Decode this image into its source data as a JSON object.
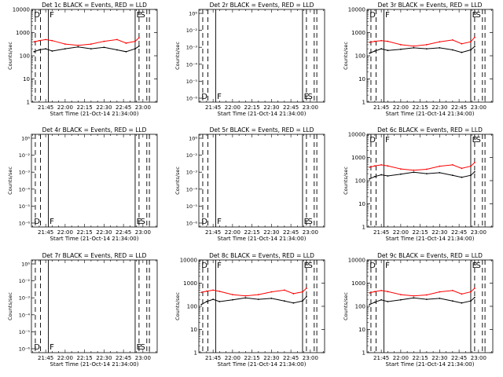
{
  "figure": {
    "x_tick_labels": [
      "21:45",
      "22:00",
      "22:15",
      "22:30",
      "22:45",
      "23:00"
    ],
    "x_axis_label": "Start Time (21-Oct-14 21:34:00)",
    "y_axis_label": "Counts/sec",
    "log_tick_labels": [
      "1",
      "10",
      "100",
      "1000",
      "10000"
    ],
    "empty_tick_labels": [
      "10⁶",
      "10⁻²",
      "10⁻³",
      "10⁻⁴",
      "10⁻⁵",
      "10⁻⁶"
    ],
    "colors": {
      "events": "#000000",
      "lld": "#ff0000"
    }
  },
  "chart_data": [
    {
      "type": "line",
      "title": "Det 1c BLACK = Events, RED = LLD",
      "has_data": true,
      "markers": [
        "D",
        "F",
        "E",
        "S"
      ],
      "ylim": [
        1,
        10000
      ],
      "y_scale": "log",
      "series": [
        {
          "name": "Events",
          "x": [
            "21:36",
            "21:40",
            "21:45",
            "21:50",
            "22:00",
            "22:10",
            "22:20",
            "22:30",
            "22:40",
            "22:47",
            "22:54",
            "22:57"
          ],
          "values": [
            150,
            180,
            200,
            160,
            200,
            240,
            200,
            230,
            180,
            150,
            200,
            260
          ]
        },
        {
          "name": "LLD",
          "x": [
            "21:36",
            "21:40",
            "21:45",
            "21:50",
            "22:00",
            "22:10",
            "22:20",
            "22:30",
            "22:40",
            "22:47",
            "22:54",
            "22:57"
          ],
          "values": [
            400,
            450,
            500,
            450,
            320,
            280,
            320,
            420,
            500,
            350,
            420,
            600
          ]
        }
      ]
    },
    {
      "type": "line",
      "title": "Det 2r BLACK = Events, RED = LLD",
      "has_data": false,
      "markers": [
        "D",
        "F",
        "E",
        "S"
      ],
      "ylim": [
        1e-06,
        1000000.0
      ],
      "y_scale": "log",
      "series": []
    },
    {
      "type": "line",
      "title": "Det 3r BLACK = Events, RED = LLD",
      "has_data": true,
      "markers": [
        "D",
        "F",
        "E",
        "S"
      ],
      "ylim": [
        1,
        10000
      ],
      "y_scale": "log",
      "series": [
        {
          "name": "Events",
          "x": [
            "21:36",
            "21:40",
            "21:45",
            "21:50",
            "22:00",
            "22:10",
            "22:20",
            "22:30",
            "22:40",
            "22:47",
            "22:54",
            "22:57"
          ],
          "values": [
            130,
            160,
            200,
            170,
            190,
            220,
            200,
            220,
            180,
            140,
            180,
            250
          ]
        },
        {
          "name": "LLD",
          "x": [
            "21:36",
            "21:40",
            "21:45",
            "21:50",
            "22:00",
            "22:10",
            "22:20",
            "22:30",
            "22:40",
            "22:47",
            "22:54",
            "22:57"
          ],
          "values": [
            380,
            420,
            450,
            420,
            300,
            260,
            300,
            400,
            480,
            330,
            400,
            620
          ]
        }
      ]
    },
    {
      "type": "line",
      "title": "Det 4r BLACK = Events, RED = LLD",
      "has_data": false,
      "markers": [
        "D",
        "F",
        "E",
        "S"
      ],
      "ylim": [
        1e-06,
        1000000.0
      ],
      "y_scale": "log",
      "series": []
    },
    {
      "type": "line",
      "title": "Det 5r BLACK = Events, RED = LLD",
      "has_data": false,
      "markers": [
        "D",
        "F",
        "E",
        "S"
      ],
      "ylim": [
        1e-06,
        1000000.0
      ],
      "y_scale": "log",
      "series": []
    },
    {
      "type": "line",
      "title": "Det 6c BLACK = Events, RED = LLD",
      "has_data": true,
      "markers": [
        "D",
        "F",
        "E",
        "S"
      ],
      "ylim": [
        1,
        10000
      ],
      "y_scale": "log",
      "series": [
        {
          "name": "Events",
          "x": [
            "21:36",
            "21:40",
            "21:45",
            "21:50",
            "22:00",
            "22:10",
            "22:20",
            "22:30",
            "22:40",
            "22:47",
            "22:54",
            "22:57"
          ],
          "values": [
            120,
            150,
            180,
            160,
            190,
            230,
            200,
            220,
            170,
            140,
            170,
            240
          ]
        },
        {
          "name": "LLD",
          "x": [
            "21:36",
            "21:40",
            "21:45",
            "21:50",
            "22:00",
            "22:10",
            "22:20",
            "22:30",
            "22:40",
            "22:47",
            "22:54",
            "22:57"
          ],
          "values": [
            380,
            430,
            480,
            430,
            320,
            280,
            310,
            420,
            480,
            340,
            420,
            600
          ]
        }
      ]
    },
    {
      "type": "line",
      "title": "Det 7r BLACK = Events, RED = LLD",
      "has_data": false,
      "markers": [
        "D",
        "F",
        "E",
        "S"
      ],
      "ylim": [
        1e-06,
        1000000.0
      ],
      "y_scale": "log",
      "series": []
    },
    {
      "type": "line",
      "title": "Det 8c BLACK = Events, RED = LLD",
      "has_data": true,
      "markers": [
        "D",
        "F",
        "E",
        "S"
      ],
      "ylim": [
        1,
        10000
      ],
      "y_scale": "log",
      "series": [
        {
          "name": "Events",
          "x": [
            "21:36",
            "21:40",
            "21:45",
            "21:50",
            "22:00",
            "22:10",
            "22:20",
            "22:30",
            "22:40",
            "22:47",
            "22:54",
            "22:57"
          ],
          "values": [
            120,
            160,
            200,
            160,
            190,
            230,
            200,
            220,
            170,
            140,
            170,
            260
          ]
        },
        {
          "name": "LLD",
          "x": [
            "21:36",
            "21:40",
            "21:45",
            "21:50",
            "22:00",
            "22:10",
            "22:20",
            "22:30",
            "22:40",
            "22:47",
            "22:54",
            "22:57"
          ],
          "values": [
            400,
            450,
            500,
            440,
            320,
            280,
            320,
            420,
            500,
            350,
            420,
            600
          ]
        }
      ]
    },
    {
      "type": "line",
      "title": "Det 9c BLACK = Events, RED = LLD",
      "has_data": true,
      "markers": [
        "D",
        "F",
        "E",
        "S"
      ],
      "ylim": [
        1,
        10000
      ],
      "y_scale": "log",
      "series": [
        {
          "name": "Events",
          "x": [
            "21:36",
            "21:40",
            "21:45",
            "21:50",
            "22:00",
            "22:10",
            "22:20",
            "22:30",
            "22:40",
            "22:47",
            "22:54",
            "22:57"
          ],
          "values": [
            120,
            150,
            190,
            160,
            190,
            230,
            200,
            220,
            170,
            140,
            170,
            240
          ]
        },
        {
          "name": "LLD",
          "x": [
            "21:36",
            "21:40",
            "21:45",
            "21:50",
            "22:00",
            "22:10",
            "22:20",
            "22:30",
            "22:40",
            "22:47",
            "22:54",
            "22:57"
          ],
          "values": [
            380,
            430,
            480,
            430,
            320,
            280,
            310,
            420,
            480,
            340,
            420,
            600
          ]
        }
      ]
    }
  ]
}
